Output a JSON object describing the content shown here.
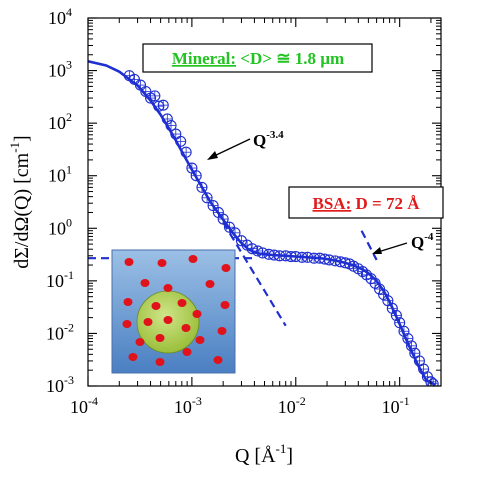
{
  "chart_data": {
    "type": "scatter",
    "xscale": "log",
    "yscale": "log",
    "xlim": [
      0.0001,
      0.25
    ],
    "ylim": [
      0.001,
      10000
    ],
    "xlabel": "Q [Å",
    "xlabel_sup": "-1",
    "xlabel_close": "]",
    "ylabel": "dΣ/dΩ(Q) [cm",
    "ylabel_sup": "-1",
    "ylabel_close": "]",
    "x_ticks": [
      {
        "value": 0.0001,
        "base": "10",
        "exp": "-4"
      },
      {
        "value": 0.001,
        "base": "10",
        "exp": "-3"
      },
      {
        "value": 0.01,
        "base": "10",
        "exp": "-2"
      },
      {
        "value": 0.1,
        "base": "10",
        "exp": "-1"
      }
    ],
    "y_ticks": [
      {
        "value": 0.001,
        "base": "10",
        "exp": "-3"
      },
      {
        "value": 0.01,
        "base": "10",
        "exp": "-2"
      },
      {
        "value": 0.1,
        "base": "10",
        "exp": "-1"
      },
      {
        "value": 1,
        "base": "10",
        "exp": "0"
      },
      {
        "value": 10,
        "base": "10",
        "exp": "1"
      },
      {
        "value": 100,
        "base": "10",
        "exp": "2"
      },
      {
        "value": 1000,
        "base": "10",
        "exp": "3"
      },
      {
        "value": 10000,
        "base": "10",
        "exp": "4"
      }
    ],
    "series_color": "#1f2fd0",
    "fit_curve": {
      "x": [
        0.0001,
        0.00015,
        0.0002,
        0.0003,
        0.0004,
        0.0005,
        0.0006,
        0.0007,
        0.0008,
        0.001,
        0.0012,
        0.0015,
        0.002,
        0.0025,
        0.003,
        0.0035,
        0.004,
        0.0045,
        0.005,
        0.006,
        0.008,
        0.01,
        0.013,
        0.017,
        0.02,
        0.025,
        0.03,
        0.035,
        0.04,
        0.045,
        0.05,
        0.06,
        0.07,
        0.08,
        0.1,
        0.12,
        0.15,
        0.18,
        0.22
      ],
      "y": [
        1500,
        1250,
        950,
        520,
        270,
        145,
        80,
        47,
        29,
        13,
        7,
        3.2,
        1.45,
        0.8,
        0.52,
        0.4,
        0.35,
        0.33,
        0.32,
        0.31,
        0.3,
        0.29,
        0.28,
        0.27,
        0.26,
        0.24,
        0.22,
        0.2,
        0.18,
        0.16,
        0.14,
        0.1,
        0.065,
        0.04,
        0.015,
        0.0065,
        0.0025,
        0.0013,
        0.00105
      ]
    },
    "measured_points": {
      "x": [
        0.00025,
        0.00028,
        0.00032,
        0.00036,
        0.0004,
        0.00044,
        0.00048,
        0.00053,
        0.00058,
        0.00063,
        0.0007,
        0.00078,
        0.00088,
        0.001,
        0.0011,
        0.00125,
        0.0014,
        0.0016,
        0.0018,
        0.002,
        0.0023,
        0.0026,
        0.003,
        0.0034,
        0.0038,
        0.0043,
        0.0048,
        0.0055,
        0.0062,
        0.007,
        0.008,
        0.009,
        0.01,
        0.0115,
        0.013,
        0.015,
        0.017,
        0.019,
        0.021,
        0.024,
        0.027,
        0.03,
        0.033,
        0.036,
        0.04,
        0.044,
        0.048,
        0.053,
        0.058,
        0.064,
        0.07,
        0.077,
        0.085,
        0.093,
        0.1,
        0.11,
        0.12,
        0.13,
        0.14,
        0.155,
        0.17,
        0.185,
        0.2,
        0.21
      ],
      "y": [
        800,
        680,
        530,
        400,
        300,
        330,
        210,
        220,
        120,
        90,
        62,
        45,
        28,
        14,
        10,
        6,
        3.8,
        2.7,
        2.0,
        1.5,
        1.05,
        0.82,
        0.58,
        0.48,
        0.41,
        0.37,
        0.34,
        0.32,
        0.31,
        0.3,
        0.3,
        0.29,
        0.29,
        0.28,
        0.28,
        0.27,
        0.27,
        0.26,
        0.25,
        0.24,
        0.23,
        0.22,
        0.21,
        0.19,
        0.17,
        0.15,
        0.13,
        0.11,
        0.09,
        0.07,
        0.055,
        0.042,
        0.03,
        0.022,
        0.016,
        0.011,
        0.008,
        0.0058,
        0.0042,
        0.003,
        0.0021,
        0.0015,
        0.0012,
        0.0011
      ]
    },
    "guide_lines": [
      {
        "name": "mineral-low-q-plateau",
        "style": "dashed",
        "x": [
          0.0001,
          0.004
        ],
        "y": [
          0.27,
          0.27
        ]
      },
      {
        "name": "porod-slope-line",
        "style": "dashed",
        "x": [
          0.002,
          0.008
        ],
        "y": [
          1.3,
          0.014
        ]
      },
      {
        "name": "bsa-slope-line",
        "style": "dashed",
        "x": [
          0.043,
          0.06
        ],
        "y": [
          0.9,
          0.25
        ]
      }
    ],
    "annotations": {
      "mineral_label": "Mineral:",
      "mineral_value": " <D> ≅ 1.8 µm",
      "mineral_color": "#22c322",
      "bsa_label": "BSA:",
      "bsa_value": " D = 72 Å",
      "bsa_color": "#e11b1b",
      "q34_text": "Q",
      "q34_exp": "-3.4",
      "q4_text": "Q",
      "q4_exp": "-4"
    },
    "inset_colors": {
      "gradient_top": "#9cc0e6",
      "gradient_bottom": "#4a7fc2",
      "sphere": "#9bbf3a",
      "dots": "#e0121b"
    }
  }
}
